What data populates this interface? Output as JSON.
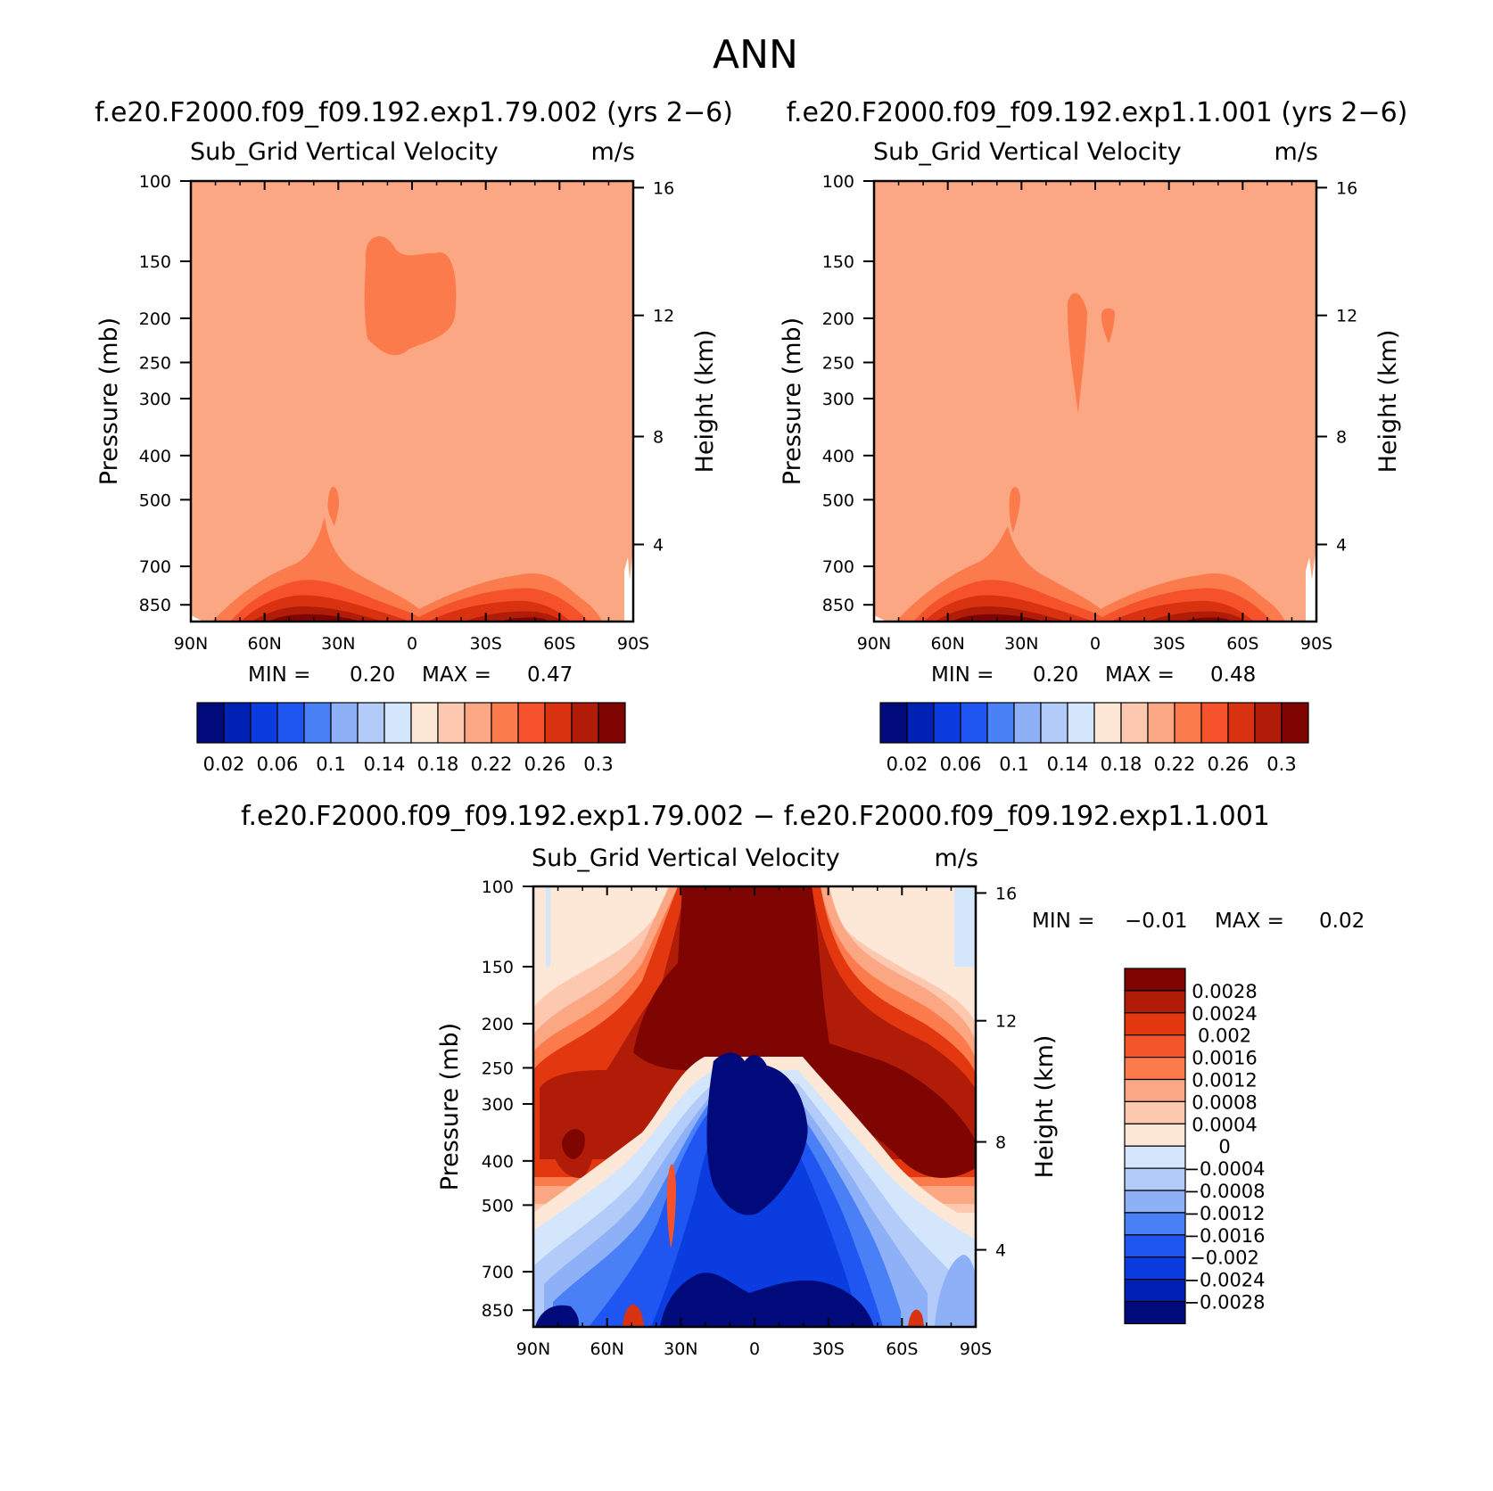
{
  "figure": {
    "title": "ANN"
  },
  "colors": {
    "diverging_16": [
      "#000a7b",
      "#0022b4",
      "#0a3ce0",
      "#1f56f2",
      "#4a80f5",
      "#8db0f7",
      "#b2cbf8",
      "#d4e6fb",
      "#fde8d7",
      "#fdc8b0",
      "#fca784",
      "#fb7b4c",
      "#f5522b",
      "#d83210",
      "#b01c08",
      "#7e0502"
    ],
    "diff_14": [
      "#7e0502",
      "#b01c08",
      "#e3380f",
      "#f5552b",
      "#fb7b4c",
      "#fca784",
      "#fdc8b0",
      "#fde8d7",
      "#d4e6fb",
      "#b2cbf8",
      "#8db0f7",
      "#4a80f5",
      "#1f56f2",
      "#0a3ce0",
      "#0022b4",
      "#000a7b"
    ]
  },
  "chart_data": [
    {
      "type": "heatmap",
      "title": "f.e20.F2000.f09_f09.192.exp1.79.002 (yrs 2−6)",
      "subtitle": "Sub_Grid Vertical Velocity",
      "units": "m/s",
      "ylabel": "Pressure (mb)",
      "ylabel_right": "Height (km)",
      "x_ticks": [
        "90N",
        "60N",
        "30N",
        "0",
        "30S",
        "60S",
        "90S"
      ],
      "y_ticks": [
        "100",
        "150",
        "200",
        "250",
        "300",
        "400",
        "500",
        "700",
        "850"
      ],
      "y_ticks_right": [
        "16",
        "12",
        "8",
        "4"
      ],
      "stats": {
        "min_label": "MIN =",
        "min": "0.20",
        "max_label": "MAX =",
        "max": "0.47"
      },
      "colorbar_labels": [
        "0.02",
        "0.06",
        "0.1",
        "0.14",
        "0.18",
        "0.22",
        "0.26",
        "0.3"
      ]
    },
    {
      "type": "heatmap",
      "title": "f.e20.F2000.f09_f09.192.exp1.1.001 (yrs 2−6)",
      "subtitle": "Sub_Grid Vertical Velocity",
      "units": "m/s",
      "ylabel": "Pressure (mb)",
      "ylabel_right": "Height (km)",
      "x_ticks": [
        "90N",
        "60N",
        "30N",
        "0",
        "30S",
        "60S",
        "90S"
      ],
      "y_ticks": [
        "100",
        "150",
        "200",
        "250",
        "300",
        "400",
        "500",
        "700",
        "850"
      ],
      "y_ticks_right": [
        "16",
        "12",
        "8",
        "4"
      ],
      "stats": {
        "min_label": "MIN =",
        "min": "0.20",
        "max_label": "MAX =",
        "max": "0.48"
      },
      "colorbar_labels": [
        "0.02",
        "0.06",
        "0.1",
        "0.14",
        "0.18",
        "0.22",
        "0.26",
        "0.3"
      ]
    },
    {
      "type": "heatmap",
      "title": "f.e20.F2000.f09_f09.192.exp1.79.002 − f.e20.F2000.f09_f09.192.exp1.1.001",
      "subtitle": "Sub_Grid Vertical Velocity",
      "units": "m/s",
      "ylabel": "Pressure (mb)",
      "ylabel_right": "Height (km)",
      "x_ticks": [
        "90N",
        "60N",
        "30N",
        "0",
        "30S",
        "60S",
        "90S"
      ],
      "y_ticks": [
        "100",
        "150",
        "200",
        "250",
        "300",
        "400",
        "500",
        "700",
        "850"
      ],
      "y_ticks_right": [
        "16",
        "12",
        "8",
        "4"
      ],
      "stats": {
        "min_label": "MIN =",
        "min": "−0.01",
        "max_label": "MAX =",
        "max": "0.02"
      },
      "colorbar_labels": [
        "0.0028",
        "0.0024",
        "0.002",
        "0.0016",
        "0.0012",
        "0.0008",
        "0.0004",
        "0",
        "−0.0004",
        "−0.0008",
        "−0.0012",
        "−0.0016",
        "−0.002",
        "−0.0024",
        "−0.0028"
      ]
    }
  ]
}
